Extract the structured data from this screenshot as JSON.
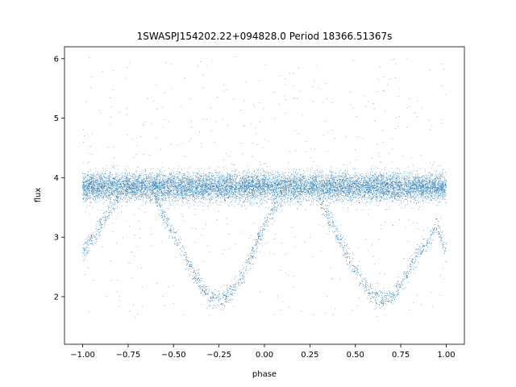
{
  "chart_data": {
    "type": "scatter",
    "title": "1SWASPJ154202.22+094828.0 Period 18366.51367s",
    "xlabel": "phase",
    "ylabel": "flux",
    "xlim": [
      -1.1,
      1.1
    ],
    "ylim": [
      1.2,
      6.2
    ],
    "x_ticks": [
      -1.0,
      -0.75,
      -0.5,
      -0.25,
      0.0,
      0.25,
      0.5,
      0.75,
      1.0
    ],
    "x_tick_labels": [
      "−1.00",
      "−0.75",
      "−0.50",
      "−0.25",
      "0.00",
      "0.25",
      "0.50",
      "0.75",
      "1.00"
    ],
    "y_ticks": [
      2,
      3,
      4,
      5,
      6
    ],
    "y_tick_labels": [
      "2",
      "3",
      "4",
      "5",
      "6"
    ],
    "grid": false,
    "legend": "none",
    "point_color": "#1f77b4",
    "series": [
      {
        "description_points": "folded light curve, two cycles over phase -1 to 1",
        "x": [
          -1.0,
          -0.95,
          -0.9,
          -0.85,
          -0.8,
          -0.75,
          -0.7,
          -0.65,
          -0.6,
          -0.55,
          -0.5,
          -0.45,
          -0.4,
          -0.35,
          -0.3,
          -0.25,
          -0.2,
          -0.15,
          -0.1,
          -0.05,
          0.0,
          0.05,
          0.1,
          0.15,
          0.2,
          0.25,
          0.3,
          0.35,
          0.4,
          0.45,
          0.5,
          0.55,
          0.6,
          0.65,
          0.7,
          0.75,
          0.8,
          0.85,
          0.9,
          0.95,
          1.0
        ],
        "upper_branch_y": [
          3.85,
          3.85,
          3.85,
          3.85,
          3.85,
          3.85,
          3.85,
          3.85,
          3.85,
          3.85,
          3.85,
          3.85,
          3.85,
          3.85,
          3.85,
          3.85,
          3.85,
          3.85,
          3.85,
          3.85,
          3.85,
          3.85,
          3.85,
          3.85,
          3.85,
          3.85,
          3.85,
          3.85,
          3.85,
          3.85,
          3.85,
          3.85,
          3.85,
          3.85,
          3.85,
          3.85,
          3.85,
          3.85,
          3.85,
          3.85,
          3.85
        ],
        "eclipse_branch_y": [
          2.75,
          2.95,
          3.2,
          3.45,
          3.7,
          null,
          null,
          null,
          3.65,
          3.35,
          3.05,
          2.75,
          2.45,
          2.2,
          2.0,
          1.95,
          2.0,
          2.2,
          2.5,
          2.85,
          3.2,
          3.5,
          3.75,
          null,
          null,
          null,
          3.65,
          3.35,
          3.05,
          2.75,
          2.45,
          2.2,
          2.0,
          1.95,
          2.0,
          2.2,
          2.5,
          2.75,
          2.95,
          3.2,
          2.75
        ]
      }
    ]
  }
}
